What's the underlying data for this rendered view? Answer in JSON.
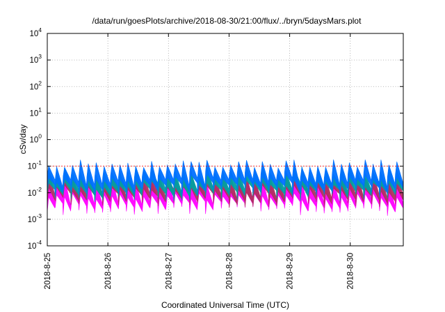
{
  "chart_data": {
    "type": "area",
    "title": "/data/run/goesPlots/archive/2018-08-30/21:00/flux/../bryn/5daysMars.plot",
    "xlabel": "Coordinated Universal Time (UTC)",
    "ylabel": "cSv/day",
    "yscale": "log",
    "ylim": [
      0.0001,
      10000
    ],
    "xlim": [
      "2018-8-25",
      "2018-8-30T21:00"
    ],
    "x_tick_labels": [
      "2018-8-25",
      "2018-8-26",
      "2018-8-27",
      "2018-8-28",
      "2018-8-29",
      "2018-8-30"
    ],
    "y_ticks": [
      {
        "base": "10",
        "exp": "-4"
      },
      {
        "base": "10",
        "exp": "-3"
      },
      {
        "base": "10",
        "exp": "-2"
      },
      {
        "base": "10",
        "exp": "-1"
      },
      {
        "base": "10",
        "exp": "0"
      },
      {
        "base": "10",
        "exp": "1"
      },
      {
        "base": "10",
        "exp": "2"
      },
      {
        "base": "10",
        "exp": "3"
      },
      {
        "base": "10",
        "exp": "4"
      }
    ],
    "grid": true,
    "reference_level": 0.1,
    "cycles_per_day": 7.7,
    "days_span": 5.875,
    "bands": [
      {
        "color": "#ff00ff",
        "low": 0.003,
        "high": 0.03
      },
      {
        "color": "#b03060",
        "low": 0.006,
        "high": 0.05
      },
      {
        "color": "#00a0a0",
        "low": 0.01,
        "high": 0.07
      },
      {
        "color": "#0070ff",
        "low": 0.015,
        "high": 0.12
      }
    ]
  }
}
